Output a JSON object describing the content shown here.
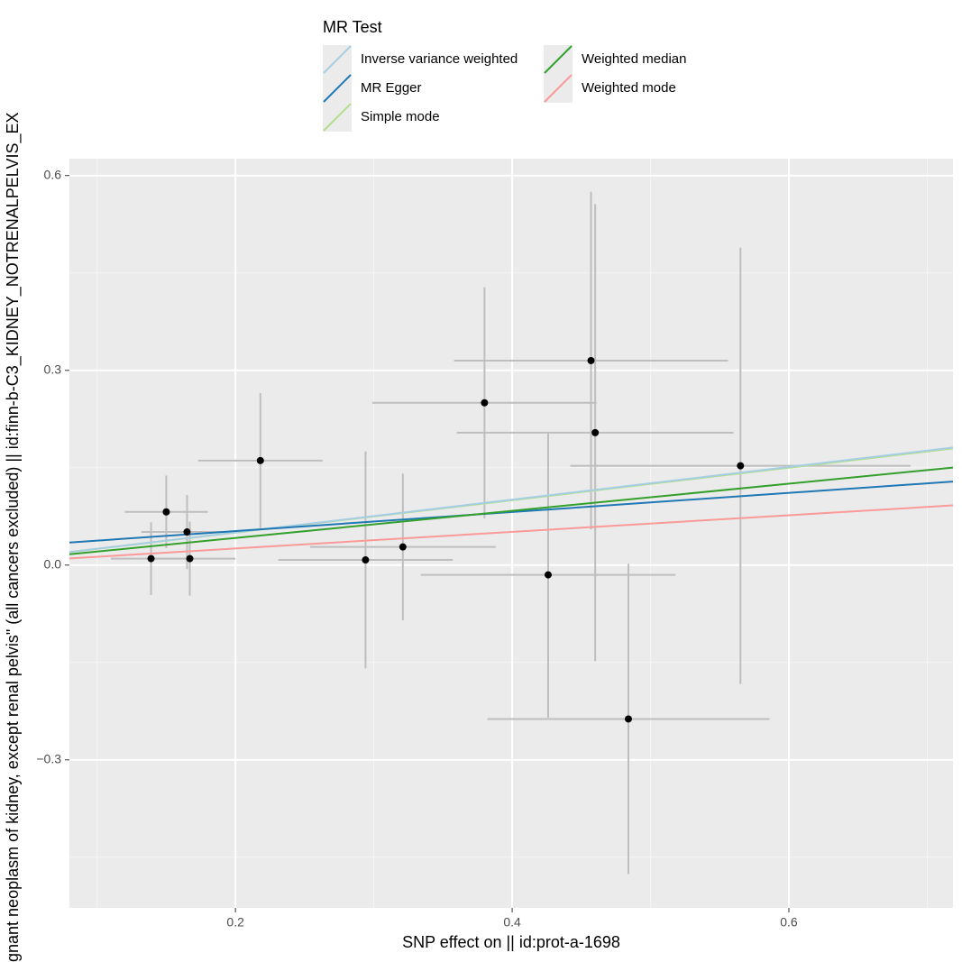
{
  "chart_data": {
    "type": "mr-scatter",
    "xlabel": "SNP effect on  || id:prot-a-1698",
    "ylabel": "gnant neoplasm of kidney, except renal pelvis\" (all cancers excluded) || id:finn-b-C3_KIDNEY_NOTRENALPELVIS_EX",
    "legend_title": "MR Test",
    "xlim": [
      0.08,
      0.7186
    ],
    "ylim": [
      -0.528,
      0.626
    ],
    "xticks": [
      0.2,
      0.4,
      0.6
    ],
    "yticks": [
      0.6,
      0.3,
      {
        "value": 0,
        "label": "0.0"
      },
      {
        "value": -0.3,
        "label": "−0.3"
      }
    ],
    "xminor": [
      0.1,
      0.3,
      0.5,
      0.7
    ],
    "yminor": [
      0.45,
      0.15,
      -0.15,
      -0.45
    ],
    "grid": true,
    "points": {
      "x": [
        0.139,
        0.15,
        0.165,
        0.167,
        0.218,
        0.294,
        0.321,
        0.38,
        0.426,
        0.457,
        0.46,
        0.484,
        0.565
      ],
      "y": [
        0.01,
        0.082,
        0.051,
        0.01,
        0.161,
        0.008,
        0.028,
        0.25,
        -0.015,
        0.315,
        0.204,
        -0.237,
        0.153
      ],
      "xerr": [
        0.029,
        0.03,
        0.033,
        0.033,
        0.045,
        0.063,
        0.067,
        0.081,
        0.092,
        0.099,
        0.1,
        0.102,
        0.123
      ],
      "yerr": [
        0.056,
        0.056,
        0.057,
        0.057,
        0.104,
        0.167,
        0.113,
        0.178,
        0.22,
        0.26,
        0.352,
        0.239,
        0.336
      ]
    },
    "series": [
      {
        "name": "Inverse variance weighted",
        "color": "#a6cee3",
        "intercept": 0,
        "slope": 0.252
      },
      {
        "name": "MR Egger",
        "color": "#1f78b4",
        "intercept": 0.023,
        "slope": 0.147
      },
      {
        "name": "Simple mode",
        "color": "#b2df8a",
        "intercept": 0,
        "slope": 0.25
      },
      {
        "name": "Weighted median",
        "color": "#33a02c",
        "intercept": 0,
        "slope": 0.209
      },
      {
        "name": "Weighted mode",
        "color": "#fb9a99",
        "intercept": 0,
        "slope": 0.128
      }
    ]
  }
}
